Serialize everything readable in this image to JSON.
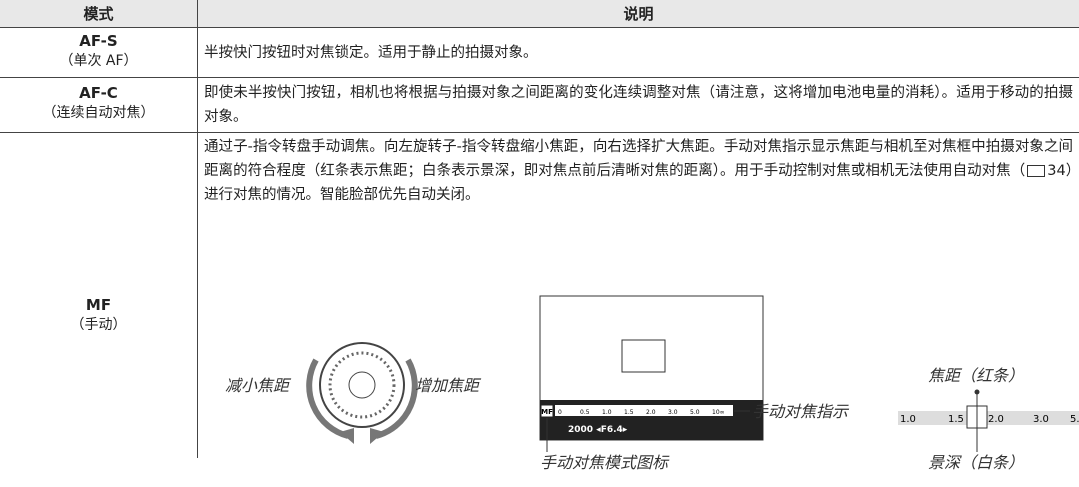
{
  "table": {
    "header": [
      "模式",
      "说明"
    ],
    "rows": [
      {
        "mode": "AF-S",
        "sub": "（单次 AF）",
        "desc": [
          "半按快门按钮时对焦锁定。适用于静止的拍摄对象。"
        ]
      },
      {
        "mode": "AF-C",
        "sub": "（连续自动对焦）",
        "desc": [
          "即使未半按快门按钮，相机也将根据与拍摄对象之间距离的变化连续调整对焦（请注意，这将增加电池电量的消耗）。适用于移动的拍摄对象。"
        ]
      },
      {
        "mode": "MF",
        "sub": "（手动）",
        "desc": [
          "通过子-指令转盘手动调焦。向左旋转子-指令转盘缩小焦距，向右选择扩大焦距。手动对焦指示显示焦距与相机至对焦框中拍摄对象之间距离的符合程度（红条表示焦距；白条表示景深，即对焦点前后清晰对焦的距离）。用于手动控制对焦或相机无法使用自动对焦（",
          "34）进行对焦的情况。智能脸部优先自动关闭。"
        ]
      }
    ]
  },
  "figure": {
    "dial_left": "减小焦距",
    "dial_right": "增加焦距",
    "indicator": "手动对焦指示",
    "mode_icon": "手动对焦模式图标",
    "mode_icon_text": "MF",
    "info": "2000  ◂F6.4▸",
    "small_scale": [
      "0",
      "0.5",
      "1.0",
      "1.5",
      "2.0",
      "3.0",
      "5.0",
      "10∞"
    ],
    "scale": [
      "1.0",
      "1.5",
      "2.0",
      "3.0",
      "5."
    ],
    "focus": "焦距（红条）",
    "dof": "景深（白条）"
  }
}
